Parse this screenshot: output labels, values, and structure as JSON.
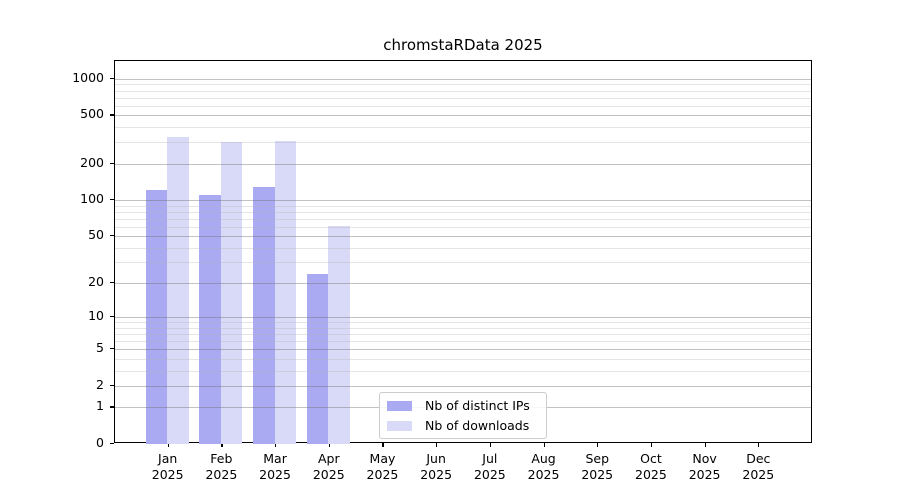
{
  "chart_data": {
    "type": "bar",
    "title": "chromstaRData 2025",
    "year_label": "2025",
    "categories": [
      "Jan",
      "Feb",
      "Mar",
      "Apr",
      "May",
      "Jun",
      "Jul",
      "Aug",
      "Sep",
      "Oct",
      "Nov",
      "Dec"
    ],
    "series": [
      {
        "name": "Nb of distinct IPs",
        "color": "#aaaaf2",
        "values": [
          120,
          110,
          128,
          24,
          0,
          0,
          0,
          0,
          0,
          0,
          0,
          0
        ]
      },
      {
        "name": "Nb of downloads",
        "color": "#d9d9f8",
        "values": [
          330,
          300,
          310,
          61,
          0,
          0,
          0,
          0,
          0,
          0,
          0,
          0
        ]
      }
    ],
    "yticks": [
      0,
      1,
      2,
      5,
      10,
      20,
      50,
      100,
      200,
      500,
      1000
    ],
    "minor_yticks": [
      3,
      4,
      6,
      7,
      8,
      9,
      30,
      40,
      60,
      70,
      80,
      90,
      300,
      400,
      600,
      700,
      800,
      900
    ],
    "scale": "log1p",
    "ylim": [
      0,
      1400
    ],
    "xlabel": "",
    "ylabel": "",
    "grid": "on",
    "grid_over_bars": true,
    "legend_position": "lower-center"
  }
}
